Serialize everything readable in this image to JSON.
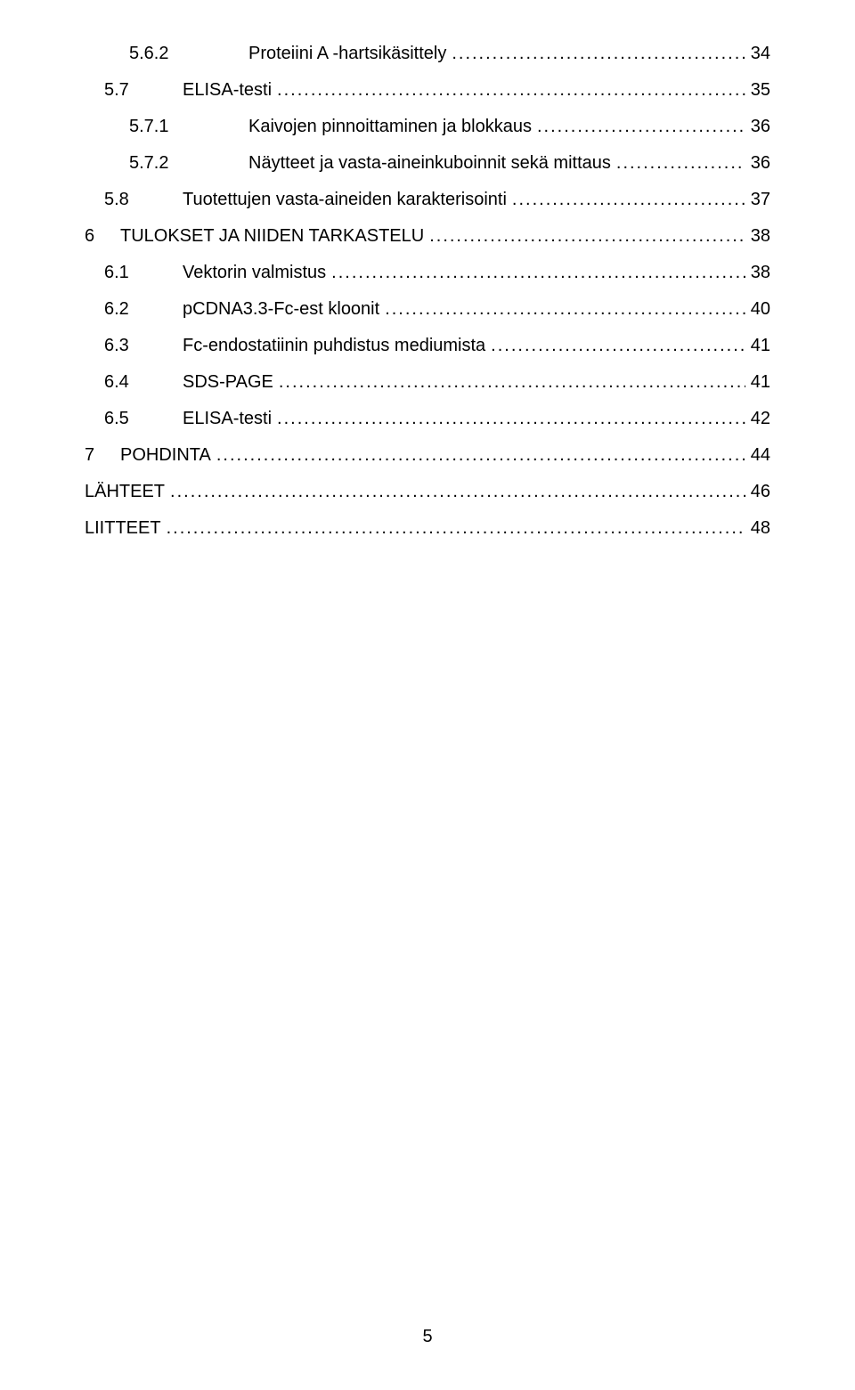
{
  "page_number": "5",
  "font": {
    "family": "Arial",
    "size_pt": 15,
    "color": "#000000"
  },
  "background_color": "#ffffff",
  "toc": [
    {
      "indent": "2",
      "num": "5.6.2",
      "title": "Proteiini A -hartsikäsittely",
      "page": "34"
    },
    {
      "indent": "1",
      "num": "5.7",
      "title": "ELISA-testi",
      "page": "35"
    },
    {
      "indent": "2",
      "num": "5.7.1",
      "title": "Kaivojen pinnoittaminen ja blokkaus",
      "page": "36"
    },
    {
      "indent": "2",
      "num": "5.7.2",
      "title": "Näytteet ja vasta-aineinkuboinnit sekä mittaus",
      "page": "36"
    },
    {
      "indent": "1",
      "num": "5.8",
      "title": "Tuotettujen vasta-aineiden karakterisointi",
      "page": "37"
    },
    {
      "indent": "0-ch",
      "num": "6",
      "title": "TULOKSET JA NIIDEN TARKASTELU",
      "page": "38"
    },
    {
      "indent": "1",
      "num": "6.1",
      "title": "Vektorin valmistus",
      "page": "38"
    },
    {
      "indent": "1",
      "num": "6.2",
      "title": "pCDNA3.3-Fc-est kloonit",
      "page": "40"
    },
    {
      "indent": "1",
      "num": "6.3",
      "title": "Fc-endostatiinin puhdistus mediumista",
      "page": "41"
    },
    {
      "indent": "1",
      "num": "6.4",
      "title": "SDS-PAGE",
      "page": "41"
    },
    {
      "indent": "1",
      "num": "6.5",
      "title": "ELISA-testi",
      "page": "42"
    },
    {
      "indent": "0-ch",
      "num": "7",
      "title": "POHDINTA",
      "page": "44"
    },
    {
      "indent": "0-noch",
      "num": "",
      "title": "LÄHTEET",
      "page": "46"
    },
    {
      "indent": "0-noch",
      "num": "",
      "title": "LIITTEET",
      "page": "48"
    }
  ]
}
